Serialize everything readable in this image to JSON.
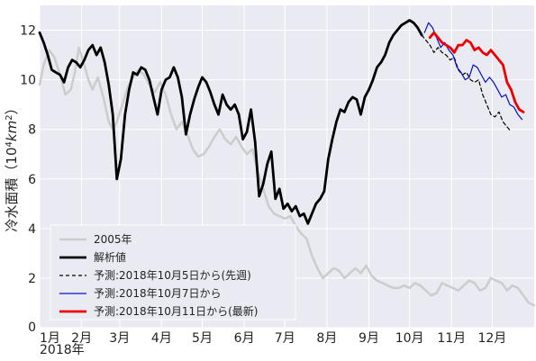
{
  "chart_data": {
    "type": "line",
    "ylabel_prefix": "冷水面積（",
    "ylabel_unit_base": "10",
    "ylabel_unit_exp": "4",
    "ylabel_unit_var": "km",
    "ylabel_unit_exp2": "2",
    "ylabel_suffix": "）",
    "year_label": "2018年",
    "ylim": [
      0,
      13
    ],
    "xlim": [
      1,
      366
    ],
    "grid": true,
    "background": "#eaeaf2",
    "grid_color": "#ffffff",
    "legend_position": "lower-left",
    "y_ticks": [
      {
        "value": 0,
        "label": "0"
      },
      {
        "value": 2,
        "label": "2"
      },
      {
        "value": 4,
        "label": "4"
      },
      {
        "value": 6,
        "label": "6"
      },
      {
        "value": 8,
        "label": "8"
      },
      {
        "value": 10,
        "label": "10"
      },
      {
        "value": 12,
        "label": "12"
      }
    ],
    "x_ticks": [
      {
        "day": 1,
        "label": "1月"
      },
      {
        "day": 32,
        "label": "2月"
      },
      {
        "day": 60,
        "label": "3月"
      },
      {
        "day": 91,
        "label": "4月"
      },
      {
        "day": 121,
        "label": "5月"
      },
      {
        "day": 152,
        "label": "6月"
      },
      {
        "day": 182,
        "label": "7月"
      },
      {
        "day": 213,
        "label": "8月"
      },
      {
        "day": 244,
        "label": "9月"
      },
      {
        "day": 274,
        "label": "10月"
      },
      {
        "day": 305,
        "label": "11月"
      },
      {
        "day": 335,
        "label": "12月"
      }
    ],
    "series": [
      {
        "name": "2005年",
        "color": "#cccccc",
        "width": 2.5,
        "dash": "",
        "x": [
          1,
          4,
          8,
          12,
          16,
          20,
          24,
          27,
          30,
          34,
          37,
          40,
          44,
          48,
          52,
          55,
          58,
          62,
          66,
          70,
          74,
          78,
          82,
          86,
          90,
          94,
          98,
          102,
          106,
          110,
          114,
          118,
          122,
          126,
          130,
          134,
          138,
          142,
          146,
          150,
          154,
          158,
          162,
          166,
          170,
          174,
          178,
          182,
          186,
          190,
          194,
          198,
          202,
          206,
          210,
          214,
          218,
          222,
          226,
          230,
          234,
          238,
          242,
          246,
          250,
          254,
          258,
          262,
          266,
          270,
          274,
          278,
          282,
          286,
          290,
          294,
          298,
          302,
          306,
          310,
          314,
          318,
          322,
          326,
          330,
          334,
          338,
          342,
          346,
          350,
          354,
          358,
          362,
          366
        ],
        "y": [
          9.8,
          10.6,
          11.2,
          10.9,
          10.2,
          9.4,
          9.6,
          10.3,
          11.3,
          10.6,
          10.0,
          9.6,
          10.1,
          9.3,
          8.3,
          8.0,
          8.3,
          9.0,
          9.7,
          10.1,
          10.4,
          10.2,
          9.8,
          9.5,
          9.9,
          9.4,
          8.6,
          8.0,
          8.3,
          7.8,
          7.2,
          6.9,
          7.0,
          7.3,
          7.7,
          8.0,
          7.6,
          7.4,
          7.7,
          7.3,
          7.0,
          7.2,
          6.3,
          5.6,
          4.9,
          4.6,
          4.5,
          4.4,
          4.5,
          4.1,
          3.8,
          3.6,
          2.9,
          2.4,
          2.0,
          2.2,
          2.4,
          2.3,
          2.0,
          2.2,
          2.4,
          2.2,
          2.5,
          2.1,
          1.9,
          1.8,
          1.7,
          1.6,
          1.6,
          1.7,
          1.6,
          1.8,
          1.7,
          1.5,
          1.3,
          1.4,
          1.8,
          1.7,
          1.6,
          1.5,
          1.7,
          1.9,
          1.8,
          1.5,
          1.6,
          2.0,
          1.9,
          1.8,
          1.5,
          1.7,
          1.6,
          1.3,
          1.0,
          0.9
        ]
      },
      {
        "name": "解析値",
        "color": "#000000",
        "width": 2.8,
        "dash": "",
        "x": [
          1,
          4,
          7,
          10,
          13,
          16,
          19,
          22,
          25,
          28,
          31,
          34,
          37,
          40,
          43,
          46,
          49,
          52,
          55,
          58,
          61,
          64,
          67,
          70,
          73,
          76,
          79,
          82,
          85,
          88,
          91,
          94,
          97,
          100,
          103,
          106,
          109,
          112,
          115,
          118,
          121,
          124,
          127,
          130,
          133,
          136,
          139,
          142,
          145,
          148,
          151,
          154,
          157,
          160,
          163,
          166,
          169,
          172,
          175,
          178,
          181,
          184,
          187,
          190,
          193,
          196,
          199,
          202,
          205,
          208,
          211,
          214,
          217,
          220,
          223,
          226,
          229,
          232,
          235,
          238,
          241,
          244,
          247,
          250,
          253,
          256,
          259,
          262,
          265,
          268,
          271,
          274,
          277,
          280,
          283
        ],
        "y": [
          11.9,
          11.5,
          11.0,
          10.4,
          10.3,
          10.2,
          9.9,
          10.5,
          10.8,
          10.7,
          10.5,
          10.8,
          11.2,
          11.4,
          11.0,
          11.3,
          10.7,
          9.8,
          8.6,
          6.0,
          6.8,
          8.6,
          9.6,
          10.3,
          10.2,
          10.5,
          10.4,
          10.0,
          9.3,
          8.6,
          9.6,
          10.0,
          10.1,
          10.5,
          10.1,
          9.3,
          7.8,
          8.6,
          9.2,
          9.7,
          10.1,
          9.9,
          9.5,
          9.0,
          8.6,
          9.4,
          9.0,
          8.8,
          9.0,
          8.6,
          7.6,
          7.9,
          8.8,
          7.5,
          5.3,
          5.8,
          6.6,
          7.1,
          5.2,
          5.6,
          4.8,
          5.0,
          4.7,
          4.9,
          4.5,
          4.6,
          4.2,
          4.6,
          5.0,
          5.2,
          5.5,
          6.8,
          7.6,
          8.3,
          8.8,
          8.7,
          9.1,
          9.3,
          9.2,
          8.6,
          9.3,
          9.6,
          10.0,
          10.5,
          10.7,
          11.0,
          11.5,
          11.8,
          12.0,
          12.2,
          12.3,
          12.4,
          12.3,
          12.1,
          11.8
        ]
      },
      {
        "name": "予測:2018年10月5日から(先週)",
        "color": "#000000",
        "width": 1.2,
        "dash": "4,3",
        "x": [
          283,
          286,
          289,
          292,
          295,
          298,
          301,
          304,
          307,
          310,
          313,
          316,
          319,
          322,
          325,
          328,
          331,
          334,
          337,
          340,
          343,
          346,
          349
        ],
        "y": [
          11.8,
          11.6,
          11.4,
          11.1,
          11.3,
          11.1,
          11.0,
          10.8,
          10.9,
          10.4,
          10.2,
          10.3,
          10.0,
          9.9,
          10.0,
          9.4,
          9.0,
          8.6,
          8.5,
          8.7,
          8.3,
          8.1,
          7.9
        ]
      },
      {
        "name": "予測:2018年10月7日から",
        "color": "#0011cc",
        "width": 1.2,
        "dash": "",
        "x": [
          285,
          288,
          291,
          294,
          297,
          300,
          303,
          306,
          309,
          312,
          315,
          318,
          321,
          324,
          327,
          330,
          333,
          336,
          339,
          342,
          345,
          348,
          351,
          354,
          357
        ],
        "y": [
          11.9,
          12.3,
          12.1,
          11.7,
          11.3,
          11.5,
          11.2,
          11.0,
          10.5,
          10.3,
          10.0,
          10.1,
          10.6,
          10.5,
          10.2,
          9.9,
          10.1,
          9.9,
          9.6,
          9.3,
          9.4,
          9.0,
          8.9,
          8.6,
          8.4
        ]
      },
      {
        "name": "予測:2018年10月11日から(最新)",
        "color": "#ee0000",
        "width": 2.8,
        "dash": "",
        "x": [
          289,
          292,
          295,
          298,
          301,
          304,
          307,
          310,
          313,
          316,
          319,
          322,
          325,
          328,
          331,
          334,
          337,
          340,
          343,
          346,
          349,
          352,
          355,
          358
        ],
        "y": [
          11.7,
          11.9,
          11.7,
          11.5,
          11.4,
          11.3,
          11.1,
          11.4,
          11.4,
          11.6,
          11.5,
          11.2,
          11.3,
          11.1,
          11.0,
          11.2,
          11.0,
          10.8,
          10.6,
          9.9,
          9.6,
          9.1,
          8.8,
          8.7
        ]
      }
    ]
  }
}
